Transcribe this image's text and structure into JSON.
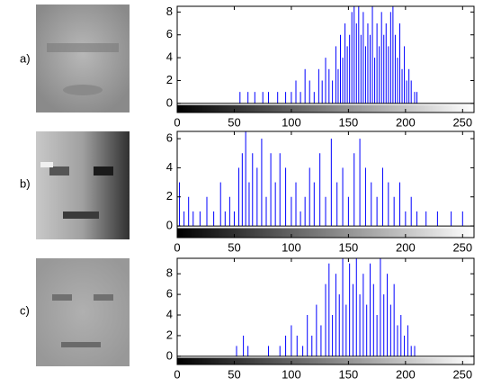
{
  "chart_data": [
    {
      "type": "stem",
      "label": "a)",
      "color": "#0000ff",
      "x": [
        55,
        62,
        68,
        75,
        80,
        88,
        95,
        100,
        104,
        108,
        112,
        116,
        120,
        124,
        127,
        130,
        133,
        136,
        139,
        141,
        143,
        145,
        147,
        149,
        151,
        153,
        155,
        157,
        159,
        161,
        163,
        165,
        167,
        169,
        171,
        173,
        175,
        177,
        179,
        181,
        183,
        185,
        187,
        189,
        191,
        193,
        195,
        197,
        199,
        201,
        203,
        205,
        208,
        210
      ],
      "values": [
        1,
        1,
        1,
        1,
        1,
        1,
        1,
        1,
        2,
        1,
        3,
        2,
        1,
        3,
        2,
        4,
        3,
        2,
        5,
        3,
        6,
        4,
        7,
        5,
        6,
        8,
        9,
        7,
        9,
        6,
        8,
        5,
        7,
        6,
        9,
        4,
        7,
        5,
        8,
        6,
        7,
        5,
        8,
        9,
        6,
        4,
        7,
        3,
        5,
        2,
        3,
        2,
        1,
        1
      ],
      "xlim": [
        0,
        260
      ],
      "xticks": [
        0,
        50,
        100,
        150,
        200,
        250
      ],
      "ylim": [
        -0.8,
        8.5
      ],
      "yticks": [
        0,
        2,
        4,
        6,
        8
      ]
    },
    {
      "type": "stem",
      "label": "b)",
      "color": "#0000ff",
      "x": [
        2,
        6,
        10,
        14,
        20,
        26,
        32,
        38,
        42,
        46,
        50,
        54,
        57,
        60,
        63,
        66,
        70,
        74,
        78,
        82,
        86,
        90,
        95,
        100,
        104,
        108,
        112,
        116,
        120,
        125,
        130,
        135,
        140,
        145,
        150,
        155,
        160,
        165,
        170,
        175,
        180,
        185,
        190,
        195,
        200,
        205,
        210,
        218,
        228,
        240,
        250
      ],
      "values": [
        3,
        1,
        2,
        1,
        1,
        2,
        1,
        3,
        1,
        2,
        1,
        4,
        5,
        7,
        3,
        5,
        4,
        6,
        2,
        5,
        3,
        5,
        4,
        2,
        3,
        1,
        2,
        4,
        3,
        5,
        2,
        6,
        3,
        4,
        2,
        5,
        6,
        4,
        3,
        2,
        4,
        3,
        2,
        3,
        1,
        2,
        1,
        1,
        1,
        1,
        1
      ],
      "xlim": [
        0,
        260
      ],
      "xticks": [
        0,
        50,
        100,
        150,
        200,
        250
      ],
      "ylim": [
        -0.8,
        6.5
      ],
      "yticks": [
        0,
        2,
        4,
        6
      ]
    },
    {
      "type": "stem",
      "label": "c)",
      "color": "#0000ff",
      "x": [
        52,
        58,
        62,
        80,
        90,
        95,
        100,
        105,
        110,
        114,
        118,
        122,
        126,
        130,
        133,
        136,
        139,
        142,
        145,
        148,
        151,
        154,
        157,
        160,
        163,
        166,
        169,
        172,
        175,
        178,
        181,
        184,
        187,
        190,
        193,
        196,
        199,
        202,
        205,
        208
      ],
      "values": [
        1,
        2,
        1,
        1,
        1,
        2,
        3,
        2,
        1,
        4,
        2,
        5,
        3,
        7,
        9,
        4,
        8,
        6,
        10,
        5,
        9,
        7,
        10,
        6,
        8,
        5,
        9,
        7,
        4,
        10,
        6,
        8,
        5,
        7,
        3,
        4,
        2,
        3,
        1,
        1
      ],
      "xlim": [
        0,
        260
      ],
      "xticks": [
        0,
        50,
        100,
        150,
        200,
        250
      ],
      "ylim": [
        -0.8,
        9.5
      ],
      "yticks": [
        0,
        2,
        4,
        6,
        8
      ]
    }
  ]
}
